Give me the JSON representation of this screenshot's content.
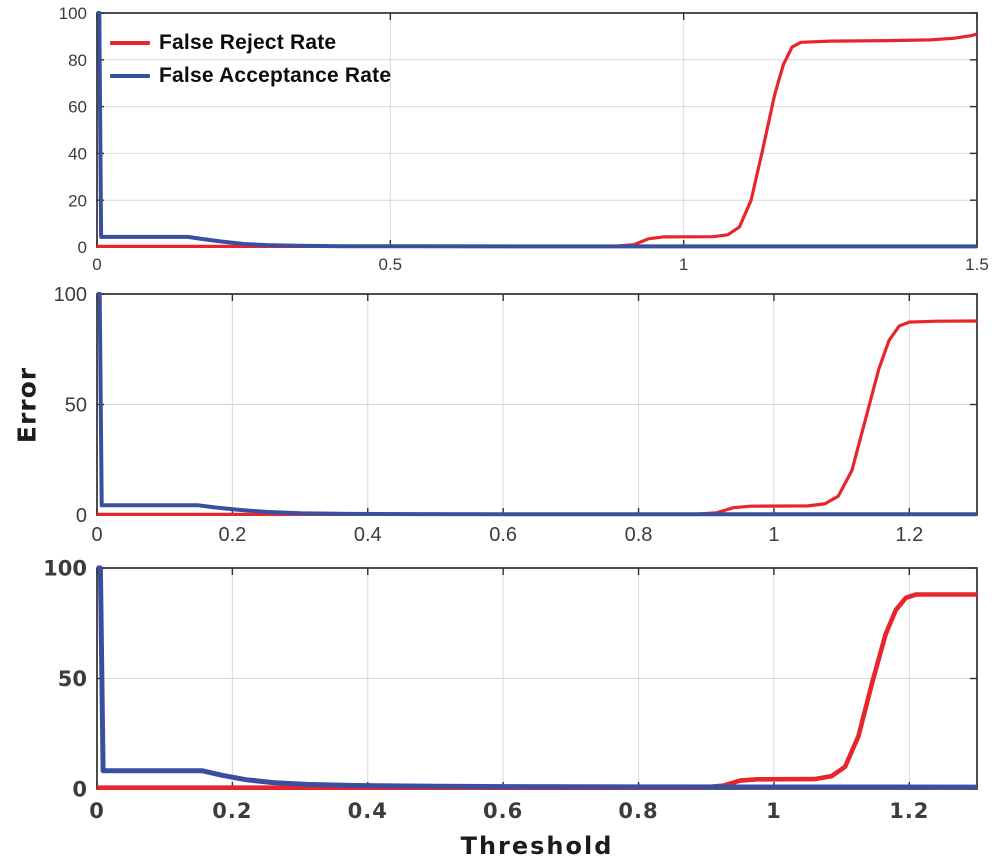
{
  "figure": {
    "background": "#ffffff"
  },
  "legend": {
    "items": [
      {
        "label": "False Reject Rate",
        "series": "frr"
      },
      {
        "label": "False Acceptance Rate",
        "series": "far"
      }
    ]
  },
  "chart_data": {
    "type": "line",
    "title": "",
    "xlabel": "Threshold",
    "ylabel": "Error",
    "legend_position": "top-left-inside-first-panel",
    "grid": true,
    "colors": {
      "frr": "#e8252a",
      "far": "#3a4f9f",
      "grid": "#d9d9d9",
      "axis": "#2f2f2f",
      "tick_text": "#3c3c3c"
    },
    "series_names": [
      "False Reject Rate",
      "False Acceptance Rate"
    ],
    "panels": [
      {
        "id": "subplot-1",
        "xlim": [
          0,
          1.5
        ],
        "ylim": [
          0,
          100
        ],
        "xticks": [
          0,
          0.5,
          1,
          1.5
        ],
        "xtick_labels": [
          "0",
          "0.5",
          "1",
          "1.5"
        ],
        "yticks": [
          0,
          20,
          40,
          60,
          80,
          100
        ],
        "ytick_labels": [
          "0",
          "20",
          "40",
          "60",
          "80",
          "100"
        ],
        "frr": [
          [
            0,
            0.25
          ],
          [
            0.88,
            0.25
          ],
          [
            0.915,
            1.0
          ],
          [
            0.94,
            3.5
          ],
          [
            0.965,
            4.3
          ],
          [
            1.05,
            4.4
          ],
          [
            1.075,
            5.2
          ],
          [
            1.095,
            8.5
          ],
          [
            1.115,
            20
          ],
          [
            1.135,
            42
          ],
          [
            1.155,
            65
          ],
          [
            1.17,
            78
          ],
          [
            1.185,
            85.5
          ],
          [
            1.2,
            87.5
          ],
          [
            1.25,
            88
          ],
          [
            1.35,
            88.2
          ],
          [
            1.42,
            88.5
          ],
          [
            1.46,
            89.2
          ],
          [
            1.49,
            90.3
          ],
          [
            1.5,
            91
          ]
        ],
        "far": [
          [
            0,
            100
          ],
          [
            0.004,
            100
          ],
          [
            0.007,
            4.3
          ],
          [
            0.155,
            4.3
          ],
          [
            0.175,
            3.6
          ],
          [
            0.21,
            2.4
          ],
          [
            0.25,
            1.3
          ],
          [
            0.29,
            0.8
          ],
          [
            0.34,
            0.5
          ],
          [
            0.42,
            0.35
          ],
          [
            0.55,
            0.3
          ],
          [
            0.8,
            0.25
          ],
          [
            1.5,
            0.25
          ]
        ]
      },
      {
        "id": "subplot-2",
        "xlim": [
          0,
          1.3
        ],
        "ylim": [
          0,
          100
        ],
        "xticks": [
          0,
          0.2,
          0.4,
          0.6,
          0.8,
          1,
          1.2
        ],
        "xtick_labels": [
          "0",
          "0.2",
          "0.4",
          "0.6",
          "0.8",
          "1",
          "1.2"
        ],
        "yticks": [
          0,
          50,
          100
        ],
        "ytick_labels": [
          "0",
          "50",
          "100"
        ],
        "frr": [
          [
            0,
            0.3
          ],
          [
            0.88,
            0.3
          ],
          [
            0.915,
            1.0
          ],
          [
            0.94,
            3.3
          ],
          [
            0.965,
            4.0
          ],
          [
            1.05,
            4.1
          ],
          [
            1.075,
            5.0
          ],
          [
            1.095,
            8.5
          ],
          [
            1.115,
            20
          ],
          [
            1.135,
            43
          ],
          [
            1.155,
            66
          ],
          [
            1.17,
            79
          ],
          [
            1.185,
            85.5
          ],
          [
            1.2,
            87.3
          ],
          [
            1.24,
            87.7
          ],
          [
            1.3,
            87.8
          ]
        ],
        "far": [
          [
            0,
            100
          ],
          [
            0.004,
            100
          ],
          [
            0.007,
            4.4
          ],
          [
            0.15,
            4.4
          ],
          [
            0.175,
            3.4
          ],
          [
            0.21,
            2.3
          ],
          [
            0.25,
            1.4
          ],
          [
            0.3,
            0.8
          ],
          [
            0.37,
            0.5
          ],
          [
            0.47,
            0.4
          ],
          [
            0.62,
            0.35
          ],
          [
            1.3,
            0.3
          ]
        ]
      },
      {
        "id": "subplot-3",
        "xlim": [
          0,
          1.3
        ],
        "ylim": [
          0,
          100
        ],
        "xticks": [
          0,
          0.2,
          0.4,
          0.6,
          0.8,
          1,
          1.2
        ],
        "xtick_labels": [
          "0",
          "0.2",
          "0.4",
          "0.6",
          "0.8",
          "1",
          "1.2"
        ],
        "yticks": [
          0,
          50,
          100
        ],
        "ytick_labels": [
          "0",
          "50",
          "100"
        ],
        "frr": [
          [
            0,
            0.6
          ],
          [
            0.89,
            0.6
          ],
          [
            0.925,
            1.5
          ],
          [
            0.95,
            3.8
          ],
          [
            0.975,
            4.4
          ],
          [
            1.06,
            4.5
          ],
          [
            1.085,
            5.8
          ],
          [
            1.105,
            10
          ],
          [
            1.125,
            24
          ],
          [
            1.145,
            48
          ],
          [
            1.165,
            70
          ],
          [
            1.18,
            81
          ],
          [
            1.195,
            86.5
          ],
          [
            1.21,
            88
          ],
          [
            1.3,
            88
          ]
        ],
        "far": [
          [
            0,
            100
          ],
          [
            0.005,
            100
          ],
          [
            0.009,
            8.3
          ],
          [
            0.155,
            8.3
          ],
          [
            0.185,
            6.2
          ],
          [
            0.22,
            4.2
          ],
          [
            0.26,
            2.9
          ],
          [
            0.31,
            2.1
          ],
          [
            0.38,
            1.6
          ],
          [
            0.5,
            1.2
          ],
          [
            0.7,
            1.0
          ],
          [
            1.0,
            0.9
          ],
          [
            1.3,
            0.85
          ]
        ]
      }
    ]
  }
}
